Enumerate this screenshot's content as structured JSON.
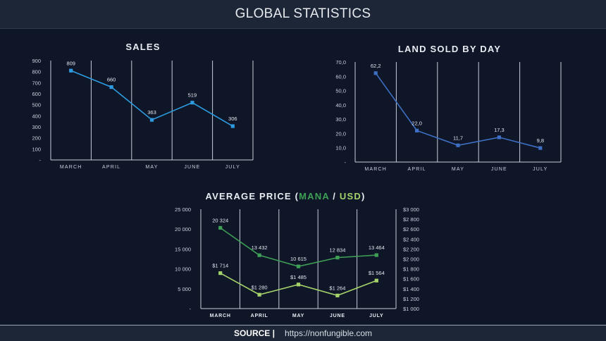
{
  "header": {
    "title": "GLOBAL STATISTICS"
  },
  "footer": {
    "source_label": "SOURCE |",
    "source_url": "https://nonfungible.com"
  },
  "chart_data": [
    {
      "id": "sales",
      "type": "line",
      "title": "SALES",
      "categories": [
        "MARCH",
        "APRIL",
        "MAY",
        "JUNE",
        "JULY"
      ],
      "series": [
        {
          "values": [
            809,
            660,
            363,
            519,
            306
          ],
          "labels": [
            "809",
            "660",
            "363",
            "519",
            "306"
          ],
          "color": "#2e9be0"
        }
      ],
      "y_ticks": [
        "-",
        "100",
        "200",
        "300",
        "400",
        "500",
        "600",
        "700",
        "800",
        "900"
      ],
      "ylim": [
        0,
        900
      ]
    },
    {
      "id": "land",
      "type": "line",
      "title": "LAND SOLD BY DAY",
      "categories": [
        "MARCH",
        "APRIL",
        "MAY",
        "JUNE",
        "JULY"
      ],
      "series": [
        {
          "values": [
            62.2,
            22.0,
            11.7,
            17.3,
            9.8
          ],
          "labels": [
            "62,2",
            "22,0",
            "11,7",
            "17,3",
            "9,8"
          ],
          "color": "#3d6fc2"
        }
      ],
      "y_ticks": [
        "-",
        "10,0",
        "20,0",
        "30,0",
        "40,0",
        "50,0",
        "60,0",
        "70,0"
      ],
      "ylim": [
        0,
        70
      ]
    },
    {
      "id": "price",
      "type": "line",
      "title_prefix": "AVERAGE PRICE (",
      "title_mana": "MANA",
      "title_sep": " / ",
      "title_usd": "USD",
      "title_suffix": ")",
      "categories": [
        "MARCH",
        "APRIL",
        "MAY",
        "JUNE",
        "JULY"
      ],
      "series": [
        {
          "name": "MANA",
          "axis": "left",
          "values": [
            20324,
            13432,
            10615,
            12834,
            13464
          ],
          "labels": [
            "20 324",
            "13 432",
            "10 615",
            "12 834",
            "13 464"
          ],
          "color": "#3e9f55"
        },
        {
          "name": "USD",
          "axis": "right",
          "values": [
            1714,
            1280,
            1485,
            1264,
            1564
          ],
          "labels": [
            "$1 714",
            "$1 280",
            "$1 485",
            "$1 264",
            "$1 564"
          ],
          "color": "#a5d36a"
        }
      ],
      "y_ticks": [
        "-",
        "5 000",
        "10 000",
        "15 000",
        "20 000",
        "25 000"
      ],
      "ylim": [
        0,
        25000
      ],
      "y2_ticks": [
        "$1 000",
        "$1 200",
        "$1 400",
        "$1 600",
        "$1 800",
        "$2 000",
        "$2 200",
        "$2 400",
        "$2 600",
        "$2 800",
        "$3 000"
      ],
      "y2lim": [
        1000,
        3000
      ]
    }
  ],
  "colors": {
    "background": "#0e1628",
    "header": "#1c2637",
    "grid": "#c8ced8",
    "mana": "#3e9f55",
    "usd": "#a5d36a"
  }
}
